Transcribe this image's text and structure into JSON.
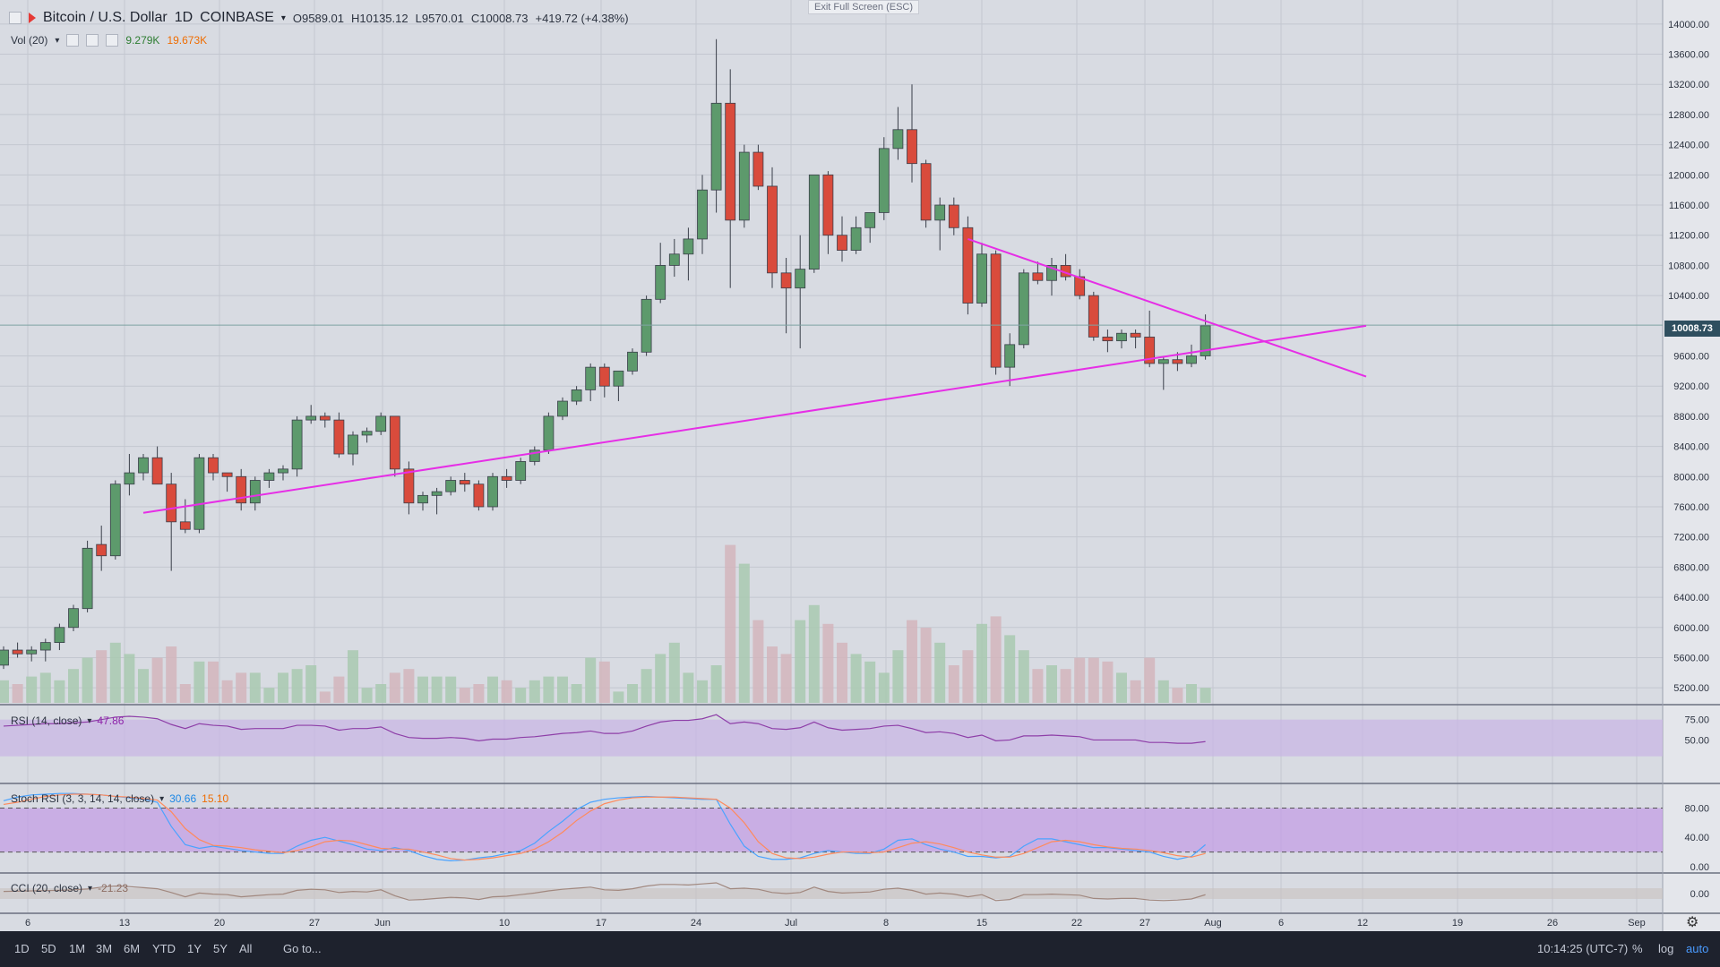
{
  "header": {
    "symbol": "Bitcoin / U.S. Dollar",
    "interval": "1D",
    "exchange": "COINBASE",
    "open": "O9589.01",
    "high": "H10135.12",
    "low": "L9570.01",
    "close": "C10008.73",
    "change": "+419.72 (+4.38%)",
    "exit_full_screen": "Exit Full Screen (ESC)"
  },
  "volume": {
    "label": "Vol (20)",
    "value_a": "9.279K",
    "value_b": "19.673K"
  },
  "rsi": {
    "label": "RSI (14, close)",
    "value": "47.86"
  },
  "stoch": {
    "label": "Stoch RSI (3, 3, 14, 14, close)",
    "k": "30.66",
    "d": "15.10"
  },
  "cci": {
    "label": "CCI (20, close)",
    "value": "-21.23"
  },
  "price_badge": "10008.73",
  "price_axis": [
    "14000.00",
    "13600.00",
    "13200.00",
    "12800.00",
    "12400.00",
    "12000.00",
    "11600.00",
    "11200.00",
    "10800.00",
    "10400.00",
    "9600.00",
    "9200.00",
    "8800.00",
    "8400.00",
    "8000.00",
    "7600.00",
    "7200.00",
    "6800.00",
    "6400.00",
    "6000.00",
    "5600.00",
    "5200.00"
  ],
  "rsi_axis": [
    "75.00",
    "50.00"
  ],
  "stoch_axis": [
    "80.00",
    "40.00",
    "0.00"
  ],
  "cci_axis": [
    "0.00"
  ],
  "time_axis": [
    "6",
    "13",
    "20",
    "27",
    "Jun",
    "10",
    "17",
    "24",
    "Jul",
    "8",
    "15",
    "22",
    "27",
    "Aug",
    "6",
    "12",
    "19",
    "26",
    "Sep"
  ],
  "bottom_bar": {
    "ranges": [
      "1D",
      "5D",
      "1M",
      "3M",
      "6M",
      "YTD",
      "1Y",
      "5Y",
      "All"
    ],
    "goto": "Go to...",
    "time": "10:14:25 (UTC-7)",
    "percent": "%",
    "log": "log",
    "auto": "auto"
  },
  "colors": {
    "up": "#5d9a6c",
    "down": "#d94b3c",
    "trendline": "#e62ee6",
    "rsi_band": "#c9b5e6",
    "stoch_k": "#4aa3ff",
    "stoch_d": "#ff8a5c"
  },
  "chart_data": {
    "type": "candlestick",
    "ohlc": [
      [
        5500,
        5750,
        5450,
        5700
      ],
      [
        5700,
        5800,
        5600,
        5650
      ],
      [
        5650,
        5750,
        5550,
        5700
      ],
      [
        5700,
        5850,
        5550,
        5800
      ],
      [
        5800,
        6050,
        5700,
        6000
      ],
      [
        6000,
        6300,
        5950,
        6250
      ],
      [
        6250,
        7150,
        6200,
        7050
      ],
      [
        7100,
        7350,
        6750,
        6950
      ],
      [
        6950,
        7950,
        6900,
        7900
      ],
      [
        7900,
        8300,
        7750,
        8050
      ],
      [
        8050,
        8300,
        7950,
        8250
      ],
      [
        8250,
        8400,
        7900,
        7900
      ],
      [
        7900,
        8050,
        6750,
        7400
      ],
      [
        7400,
        7700,
        7250,
        7300
      ],
      [
        7300,
        8300,
        7250,
        8250
      ],
      [
        8250,
        8300,
        7950,
        8050
      ],
      [
        8050,
        8050,
        7800,
        8000
      ],
      [
        8000,
        8100,
        7550,
        7650
      ],
      [
        7650,
        8000,
        7550,
        7950
      ],
      [
        7950,
        8100,
        7850,
        8050
      ],
      [
        8050,
        8150,
        7950,
        8100
      ],
      [
        8100,
        8800,
        8000,
        8750
      ],
      [
        8750,
        8950,
        8700,
        8800
      ],
      [
        8800,
        8850,
        8650,
        8750
      ],
      [
        8750,
        8850,
        8250,
        8300
      ],
      [
        8300,
        8600,
        8150,
        8550
      ],
      [
        8550,
        8650,
        8450,
        8600
      ],
      [
        8600,
        8850,
        8550,
        8800
      ],
      [
        8800,
        8800,
        8000,
        8100
      ],
      [
        8100,
        8200,
        7500,
        7650
      ],
      [
        7650,
        7800,
        7550,
        7750
      ],
      [
        7750,
        7850,
        7500,
        7800
      ],
      [
        7800,
        8000,
        7750,
        7950
      ],
      [
        7950,
        8050,
        7800,
        7900
      ],
      [
        7900,
        7950,
        7550,
        7600
      ],
      [
        7600,
        8050,
        7550,
        8000
      ],
      [
        8000,
        8100,
        7850,
        7950
      ],
      [
        7950,
        8250,
        7900,
        8200
      ],
      [
        8200,
        8400,
        8150,
        8350
      ],
      [
        8350,
        8850,
        8300,
        8800
      ],
      [
        8800,
        9050,
        8750,
        9000
      ],
      [
        9000,
        9200,
        8950,
        9150
      ],
      [
        9150,
        9500,
        9000,
        9450
      ],
      [
        9450,
        9500,
        9050,
        9200
      ],
      [
        9200,
        9400,
        9000,
        9400
      ],
      [
        9400,
        9700,
        9350,
        9650
      ],
      [
        9650,
        10400,
        9600,
        10350
      ],
      [
        10350,
        11100,
        10300,
        10800
      ],
      [
        10800,
        11150,
        10650,
        10950
      ],
      [
        10950,
        11300,
        10600,
        11150
      ],
      [
        11150,
        12000,
        10950,
        11800
      ],
      [
        11800,
        13800,
        11500,
        12950
      ],
      [
        12950,
        13400,
        10500,
        11400
      ],
      [
        11400,
        12400,
        11300,
        12300
      ],
      [
        12300,
        12400,
        11800,
        11850
      ],
      [
        11850,
        12100,
        10500,
        10700
      ],
      [
        10700,
        10900,
        9900,
        10500
      ],
      [
        10500,
        11200,
        9700,
        10750
      ],
      [
        10750,
        12000,
        10700,
        12000
      ],
      [
        12000,
        12050,
        10950,
        11200
      ],
      [
        11200,
        11450,
        10850,
        11000
      ],
      [
        11000,
        11450,
        10950,
        11300
      ],
      [
        11300,
        11500,
        11100,
        11500
      ],
      [
        11500,
        12500,
        11400,
        12350
      ],
      [
        12350,
        12900,
        12200,
        12600
      ],
      [
        12600,
        13200,
        11900,
        12150
      ],
      [
        12150,
        12200,
        11300,
        11400
      ],
      [
        11400,
        11700,
        11000,
        11600
      ],
      [
        11600,
        11700,
        11200,
        11300
      ],
      [
        11300,
        11450,
        10150,
        10300
      ],
      [
        10300,
        11100,
        10250,
        10950
      ],
      [
        10950,
        11000,
        9350,
        9450
      ],
      [
        9450,
        9900,
        9200,
        9750
      ],
      [
        9750,
        10750,
        9700,
        10700
      ],
      [
        10700,
        10850,
        10550,
        10600
      ],
      [
        10600,
        10900,
        10400,
        10800
      ],
      [
        10800,
        10950,
        10600,
        10650
      ],
      [
        10650,
        10750,
        10350,
        10400
      ],
      [
        10400,
        10450,
        9800,
        9850
      ],
      [
        9850,
        9950,
        9650,
        9800
      ],
      [
        9800,
        9950,
        9700,
        9900
      ],
      [
        9900,
        9950,
        9700,
        9850
      ],
      [
        9850,
        10200,
        9450,
        9500
      ],
      [
        9500,
        9600,
        9150,
        9550
      ],
      [
        9550,
        9650,
        9400,
        9500
      ],
      [
        9500,
        9750,
        9450,
        9600
      ],
      [
        9600,
        10150,
        9550,
        10000
      ]
    ],
    "volume": [
      6,
      5,
      7,
      8,
      6,
      9,
      12,
      14,
      16,
      13,
      9,
      12,
      15,
      5,
      11,
      11,
      6,
      8,
      8,
      4,
      8,
      9,
      10,
      3,
      7,
      14,
      4,
      5,
      8,
      9,
      7,
      7,
      7,
      4,
      5,
      7,
      6,
      4,
      6,
      7,
      7,
      5,
      12,
      11,
      3,
      5,
      9,
      13,
      16,
      8,
      6,
      10,
      42,
      37,
      22,
      15,
      13,
      22,
      26,
      21,
      16,
      13,
      11,
      8,
      14,
      22,
      20,
      16,
      10,
      14,
      21,
      23,
      18,
      14,
      9,
      10,
      9,
      12,
      12,
      11,
      8,
      6,
      12,
      6,
      4,
      5,
      4
    ],
    "rsi": [
      67,
      68,
      69,
      70,
      70,
      71,
      72,
      75,
      78,
      79,
      78,
      76,
      69,
      64,
      70,
      68,
      67,
      63,
      64,
      64,
      64,
      68,
      68,
      67,
      62,
      64,
      64,
      66,
      58,
      53,
      52,
      52,
      53,
      52,
      49,
      51,
      51,
      53,
      54,
      56,
      58,
      59,
      61,
      58,
      58,
      61,
      67,
      72,
      74,
      74,
      76,
      81,
      70,
      72,
      70,
      64,
      63,
      65,
      72,
      65,
      62,
      63,
      64,
      67,
      68,
      64,
      59,
      60,
      58,
      53,
      56,
      49,
      50,
      55,
      55,
      56,
      55,
      54,
      50,
      50,
      50,
      50,
      47,
      47,
      46,
      46,
      48
    ],
    "stoch_k": [
      90,
      95,
      98,
      99,
      100,
      100,
      99,
      98,
      96,
      94,
      92,
      88,
      55,
      30,
      25,
      28,
      25,
      22,
      20,
      18,
      18,
      28,
      36,
      40,
      35,
      30,
      24,
      22,
      26,
      22,
      15,
      10,
      8,
      9,
      12,
      14,
      18,
      22,
      32,
      48,
      62,
      78,
      88,
      92,
      94,
      95,
      96,
      95,
      94,
      93,
      92,
      92,
      58,
      28,
      14,
      10,
      10,
      12,
      18,
      22,
      20,
      18,
      18,
      24,
      36,
      38,
      30,
      24,
      20,
      14,
      14,
      12,
      14,
      28,
      38,
      38,
      34,
      30,
      26,
      26,
      24,
      22,
      20,
      14,
      10,
      14,
      30
    ],
    "stoch_d": [
      85,
      88,
      92,
      96,
      98,
      99,
      99,
      98,
      96,
      95,
      93,
      91,
      75,
      52,
      37,
      29,
      28,
      26,
      23,
      21,
      19,
      22,
      27,
      34,
      36,
      35,
      30,
      25,
      24,
      24,
      20,
      16,
      11,
      9,
      10,
      12,
      15,
      18,
      24,
      34,
      47,
      63,
      76,
      86,
      91,
      94,
      95,
      95,
      95,
      94,
      93,
      92,
      80,
      60,
      34,
      18,
      12,
      11,
      13,
      17,
      20,
      20,
      19,
      20,
      26,
      32,
      34,
      31,
      26,
      20,
      16,
      13,
      13,
      18,
      26,
      34,
      36,
      34,
      30,
      27,
      25,
      24,
      22,
      19,
      15,
      13,
      18
    ],
    "cci": [
      40,
      45,
      50,
      55,
      60,
      70,
      85,
      120,
      140,
      130,
      110,
      90,
      20,
      -60,
      10,
      -10,
      -20,
      -60,
      -40,
      -20,
      -10,
      60,
      80,
      70,
      20,
      40,
      30,
      70,
      -40,
      -120,
      -110,
      -90,
      -70,
      -80,
      -110,
      -60,
      -50,
      -20,
      10,
      50,
      80,
      100,
      120,
      70,
      60,
      90,
      140,
      170,
      170,
      160,
      180,
      200,
      90,
      100,
      80,
      20,
      0,
      20,
      120,
      40,
      10,
      20,
      30,
      80,
      100,
      60,
      -10,
      10,
      -10,
      -60,
      -20,
      -130,
      -110,
      -20,
      -20,
      -10,
      -20,
      -30,
      -90,
      -100,
      -90,
      -90,
      -120,
      -130,
      -120,
      -100,
      -21
    ],
    "trendline_support": [
      [
        10,
        7520
      ],
      [
        94,
        9900
      ]
    ],
    "trendline_resistance": [
      [
        69,
        11150
      ],
      [
        94,
        9550
      ]
    ],
    "price_range": [
      5000,
      14200
    ]
  }
}
